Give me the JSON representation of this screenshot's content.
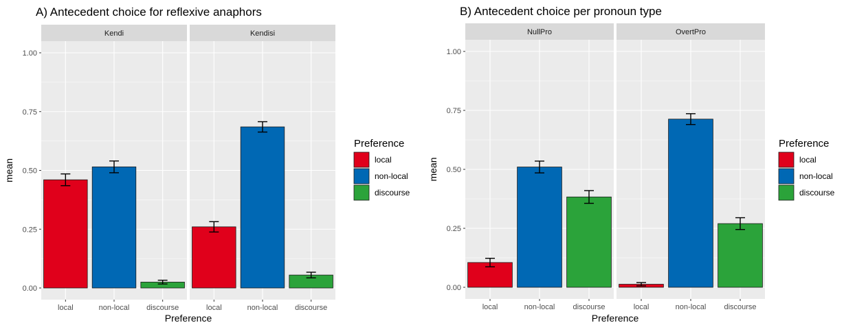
{
  "chart_data": [
    {
      "type": "bar",
      "title": "A) Antecedent choice for reflexive anaphors",
      "xlabel": "Preference",
      "ylabel": "mean",
      "ylim": [
        0,
        1
      ],
      "yticks": [
        "0.00",
        "0.25",
        "0.50",
        "0.75",
        "1.00"
      ],
      "categories": [
        "local",
        "non-local",
        "discourse"
      ],
      "facets": [
        {
          "name": "Kendi",
          "values": [
            0.46,
            0.515,
            0.025
          ],
          "errors": [
            0.025,
            0.025,
            0.008
          ]
        },
        {
          "name": "Kendisi",
          "values": [
            0.26,
            0.685,
            0.055
          ],
          "errors": [
            0.022,
            0.022,
            0.012
          ]
        }
      ],
      "legend": {
        "title": "Preference",
        "position": "right",
        "items": [
          "local",
          "non-local",
          "discourse"
        ]
      },
      "colors": {
        "local": "#e0001b",
        "non-local": "#0068b4",
        "discourse": "#2ba33a"
      },
      "grid": true
    },
    {
      "type": "bar",
      "title": "B) Antecedent choice per pronoun type",
      "xlabel": "Preference",
      "ylabel": "mean",
      "ylim": [
        0,
        1
      ],
      "yticks": [
        "0.00",
        "0.25",
        "0.50",
        "0.75",
        "1.00"
      ],
      "categories": [
        "local",
        "non-local",
        "discourse"
      ],
      "facets": [
        {
          "name": "NullPro",
          "values": [
            0.105,
            0.51,
            0.383
          ],
          "errors": [
            0.018,
            0.025,
            0.027
          ]
        },
        {
          "name": "OvertPro",
          "values": [
            0.013,
            0.713,
            0.27
          ],
          "errors": [
            0.007,
            0.023,
            0.025
          ]
        }
      ],
      "legend": {
        "title": "Preference",
        "position": "right",
        "items": [
          "local",
          "non-local",
          "discourse"
        ]
      },
      "colors": {
        "local": "#e0001b",
        "non-local": "#0068b4",
        "discourse": "#2ba33a"
      },
      "grid": true
    }
  ]
}
